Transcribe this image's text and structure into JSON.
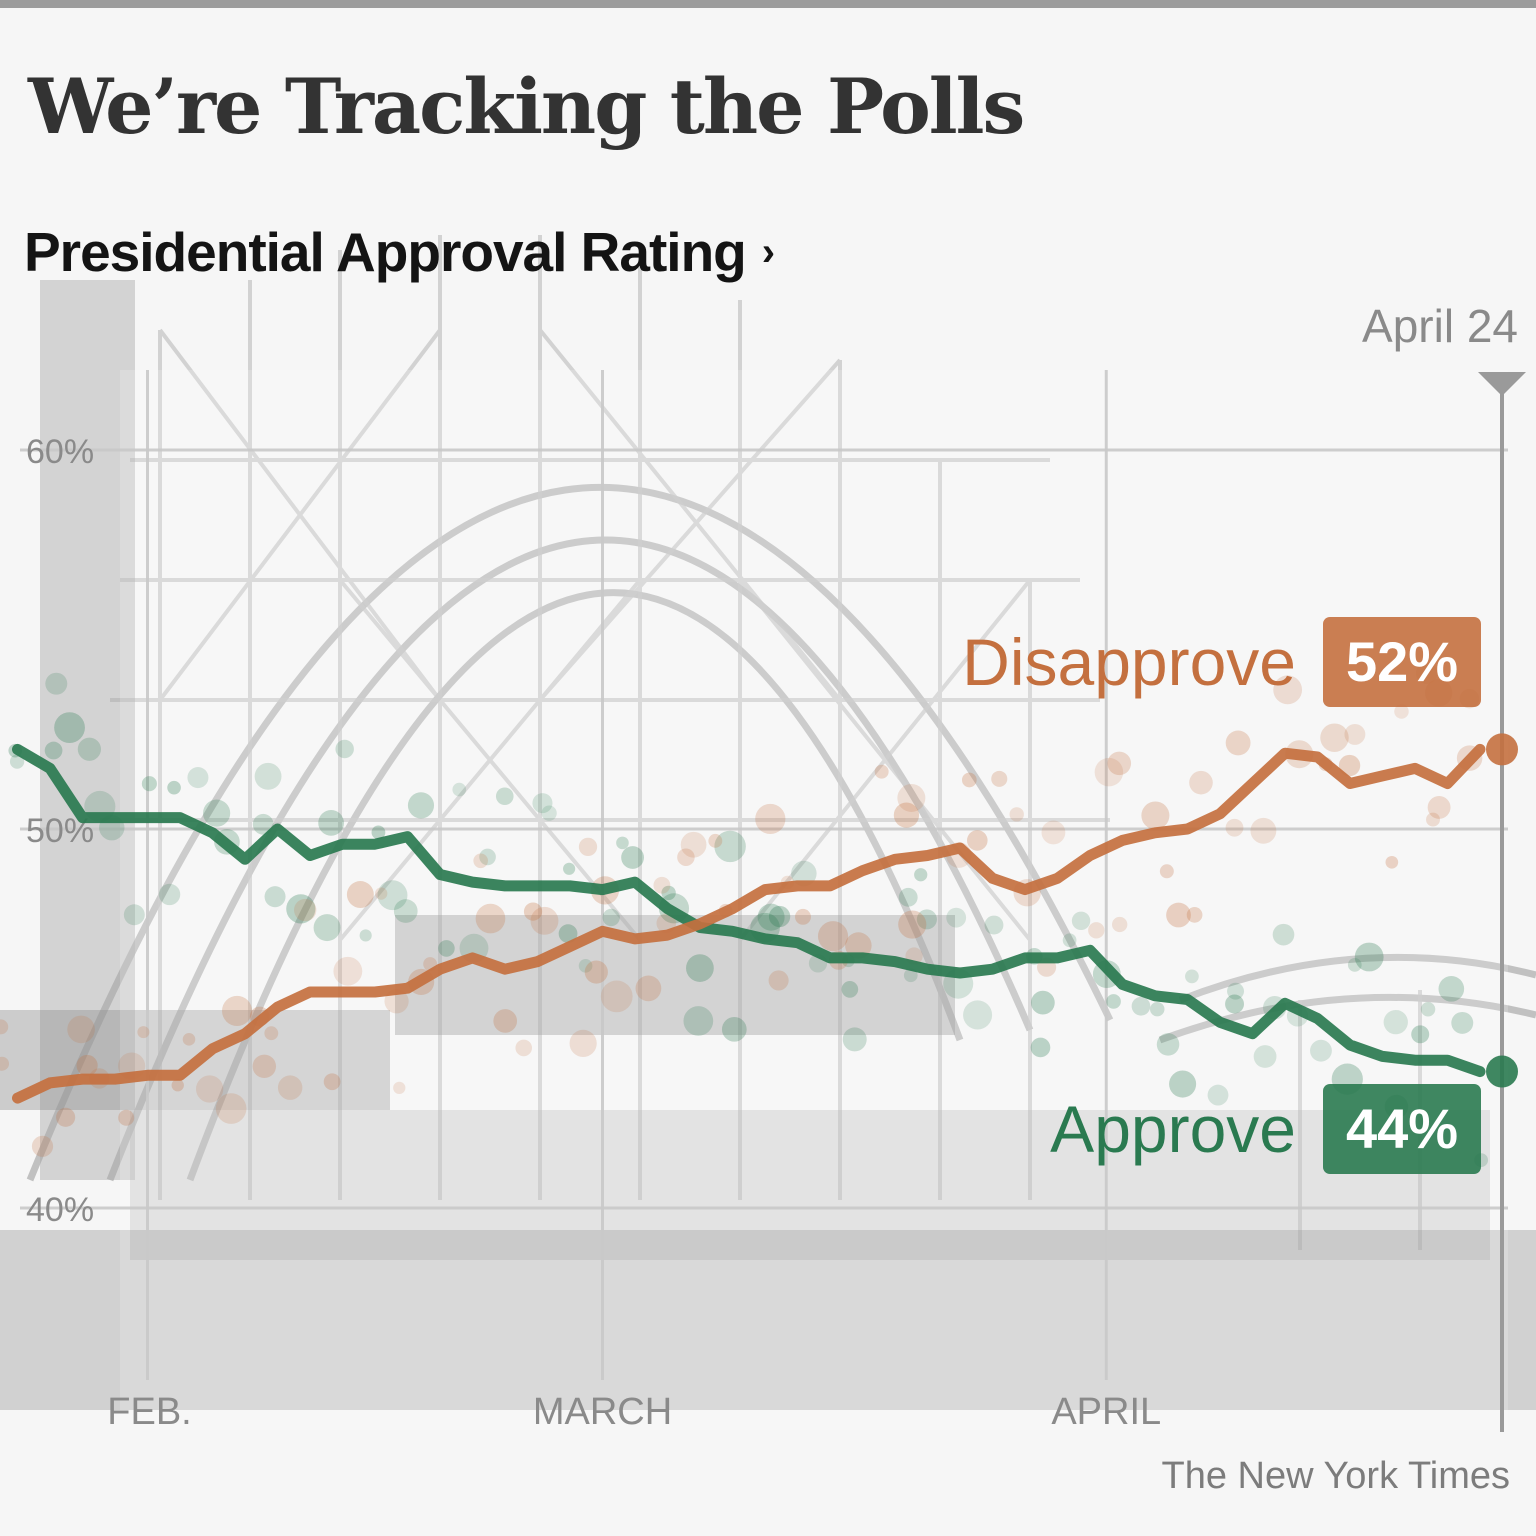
{
  "headline": "We’re Tracking the Polls",
  "subheadline": "Presidential Approval Rating",
  "source": "The New York Times",
  "colors": {
    "approve": "#2a7a50",
    "disapprove": "#c4703f"
  },
  "chart_data": {
    "type": "line",
    "title": "Presidential Approval Rating",
    "xlabel": "",
    "ylabel": "",
    "ylim": [
      36.5,
      61
    ],
    "yticks": [
      {
        "value": 60,
        "label": "60%"
      },
      {
        "value": 50,
        "label": "50%"
      },
      {
        "value": 40,
        "label": "40%"
      }
    ],
    "xticks": [
      {
        "date": "2025-02-01",
        "label": "FEB."
      },
      {
        "date": "2025-03-01",
        "label": "MARCH"
      },
      {
        "date": "2025-04-01",
        "label": "APRIL"
      }
    ],
    "current": {
      "date": "2025-04-24",
      "label": "April 24"
    },
    "grid": true,
    "series": [
      {
        "name": "Approve",
        "color": "#2a7a50",
        "latest": "44%",
        "x": [
          "2025-01-24",
          "2025-01-26",
          "2025-01-28",
          "2025-01-30",
          "2025-02-01",
          "2025-02-03",
          "2025-02-05",
          "2025-02-07",
          "2025-02-09",
          "2025-02-11",
          "2025-02-13",
          "2025-02-15",
          "2025-02-17",
          "2025-02-19",
          "2025-02-21",
          "2025-02-23",
          "2025-02-25",
          "2025-02-27",
          "2025-03-01",
          "2025-03-03",
          "2025-03-05",
          "2025-03-07",
          "2025-03-09",
          "2025-03-11",
          "2025-03-13",
          "2025-03-15",
          "2025-03-17",
          "2025-03-19",
          "2025-03-21",
          "2025-03-23",
          "2025-03-25",
          "2025-03-27",
          "2025-03-29",
          "2025-03-31",
          "2025-04-02",
          "2025-04-04",
          "2025-04-06",
          "2025-04-08",
          "2025-04-10",
          "2025-04-12",
          "2025-04-14",
          "2025-04-16",
          "2025-04-18",
          "2025-04-20",
          "2025-04-22",
          "2025-04-24"
        ],
        "y": [
          52.1,
          51.6,
          50.3,
          50.3,
          50.3,
          50.3,
          49.9,
          49.2,
          50.0,
          49.3,
          49.6,
          49.6,
          49.8,
          48.8,
          48.6,
          48.5,
          48.5,
          48.5,
          48.4,
          48.6,
          47.9,
          47.4,
          47.3,
          47.1,
          47.0,
          46.6,
          46.6,
          46.5,
          46.3,
          46.2,
          46.3,
          46.6,
          46.6,
          46.8,
          45.9,
          45.6,
          45.5,
          44.9,
          44.6,
          45.4,
          45.0,
          44.3,
          44.0,
          43.9,
          43.9,
          43.6
        ]
      },
      {
        "name": "Disapprove",
        "color": "#c4703f",
        "latest": "52%",
        "x": [
          "2025-01-24",
          "2025-01-26",
          "2025-01-28",
          "2025-01-30",
          "2025-02-01",
          "2025-02-03",
          "2025-02-05",
          "2025-02-07",
          "2025-02-09",
          "2025-02-11",
          "2025-02-13",
          "2025-02-15",
          "2025-02-17",
          "2025-02-19",
          "2025-02-21",
          "2025-02-23",
          "2025-02-25",
          "2025-02-27",
          "2025-03-01",
          "2025-03-03",
          "2025-03-05",
          "2025-03-07",
          "2025-03-09",
          "2025-03-11",
          "2025-03-13",
          "2025-03-15",
          "2025-03-17",
          "2025-03-19",
          "2025-03-21",
          "2025-03-23",
          "2025-03-25",
          "2025-03-27",
          "2025-03-29",
          "2025-03-31",
          "2025-04-02",
          "2025-04-04",
          "2025-04-06",
          "2025-04-08",
          "2025-04-10",
          "2025-04-12",
          "2025-04-14",
          "2025-04-16",
          "2025-04-18",
          "2025-04-20",
          "2025-04-22",
          "2025-04-24"
        ],
        "y": [
          42.9,
          43.3,
          43.4,
          43.4,
          43.5,
          43.5,
          44.2,
          44.6,
          45.3,
          45.7,
          45.7,
          45.7,
          45.8,
          46.3,
          46.6,
          46.3,
          46.5,
          46.9,
          47.3,
          47.1,
          47.2,
          47.5,
          47.9,
          48.4,
          48.5,
          48.5,
          48.9,
          49.2,
          49.3,
          49.5,
          48.7,
          48.4,
          48.7,
          49.3,
          49.7,
          49.9,
          50.0,
          50.4,
          51.2,
          52.0,
          51.9,
          51.2,
          51.4,
          51.6,
          51.2,
          52.1
        ]
      }
    ]
  }
}
